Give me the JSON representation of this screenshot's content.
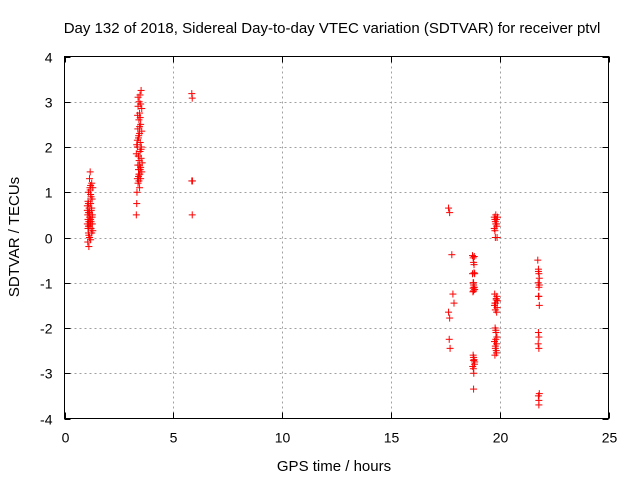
{
  "chart_data": {
    "type": "scatter",
    "title": "Day 132 of 2018, Sidereal Day-to-day VTEC variation (SDTVAR) for receiver ptvl",
    "xlabel": "GPS time / hours",
    "ylabel": "SDTVAR / TECUs",
    "xlim": [
      0,
      25
    ],
    "ylim": [
      -4,
      4
    ],
    "xticks": [
      0,
      5,
      10,
      15,
      20,
      25
    ],
    "yticks": [
      -4,
      -3,
      -2,
      -1,
      0,
      1,
      2,
      3,
      4
    ],
    "xtick_labels": [
      "0",
      "5",
      "10",
      "15",
      "20",
      "25"
    ],
    "ytick_labels": [
      "-4",
      "-3",
      "-2",
      "-1",
      "0",
      "1",
      "2",
      "3",
      "4"
    ],
    "grid": true,
    "marker": "+",
    "color": "#ff0000",
    "series": [
      {
        "name": "SDTVAR",
        "x": [
          1.05,
          1.05,
          1.05,
          1.07,
          1.07,
          1.08,
          1.08,
          1.1,
          1.1,
          1.1,
          1.12,
          1.12,
          1.13,
          1.13,
          1.15,
          1.15,
          1.15,
          1.17,
          1.17,
          1.18,
          1.18,
          1.2,
          1.2,
          1.2,
          1.22,
          1.22,
          1.23,
          1.25,
          1.25,
          1.27,
          1.27,
          1.28,
          1.3,
          1.3,
          1.1,
          1.15,
          1.2,
          1.25,
          1.12,
          1.18,
          1.22,
          1.08,
          1.28,
          1.1,
          1.2,
          3.3,
          3.32,
          3.33,
          3.35,
          3.35,
          3.37,
          3.37,
          3.38,
          3.38,
          3.4,
          3.4,
          3.4,
          3.42,
          3.42,
          3.43,
          3.43,
          3.45,
          3.45,
          3.45,
          3.47,
          3.47,
          3.48,
          3.48,
          3.5,
          3.5,
          3.5,
          3.52,
          3.52,
          3.53,
          3.55,
          3.55,
          3.57,
          3.3,
          3.35,
          3.4,
          3.45,
          3.5,
          3.55,
          3.38,
          3.42,
          3.48,
          3.52,
          3.32,
          3.44,
          3.36,
          3.46,
          3.41,
          3.39,
          5.85,
          5.87,
          5.85,
          5.88,
          5.87,
          17.65,
          17.7,
          17.8,
          17.85,
          17.9,
          17.65,
          17.7,
          17.68,
          17.72,
          18.75,
          18.78,
          18.8,
          18.82,
          18.85,
          18.75,
          18.78,
          18.8,
          18.82,
          18.85,
          18.77,
          18.8,
          18.83,
          18.78,
          18.8,
          18.82,
          18.85,
          18.76,
          18.79,
          18.81,
          18.84,
          18.8,
          18.82,
          18.78,
          18.8,
          18.83,
          18.8,
          19.75,
          19.78,
          19.8,
          19.82,
          19.85,
          19.87,
          19.9,
          19.75,
          19.78,
          19.8,
          19.82,
          19.85,
          19.87,
          19.9,
          19.76,
          19.8,
          19.84,
          19.88,
          19.77,
          19.81,
          19.86,
          19.79,
          19.83,
          19.87,
          19.76,
          19.8,
          19.84,
          19.78,
          19.82,
          19.86,
          19.8,
          19.85,
          19.78,
          19.82,
          19.88,
          19.84,
          21.75,
          21.78,
          21.8,
          21.82,
          21.77,
          21.8,
          21.78,
          21.8,
          21.82,
          21.78,
          21.8,
          21.77,
          21.8,
          21.82,
          21.78,
          21.8,
          21.8,
          21.78,
          21.82
        ],
        "y": [
          0.6,
          0.3,
          0.7,
          0.5,
          -0.1,
          0.4,
          0.2,
          1.0,
          0.55,
          0.1,
          0.35,
          -0.2,
          0.65,
          0.25,
          1.3,
          0.45,
          0.0,
          1.1,
          0.5,
          1.45,
          0.3,
          1.15,
          0.75,
          -0.05,
          0.9,
          0.2,
          0.6,
          1.2,
          0.1,
          0.45,
          0.85,
          0.3,
          1.1,
          0.15,
          0.75,
          0.55,
          0.4,
          0.65,
          0.05,
          1.05,
          0.35,
          0.8,
          0.5,
          0.25,
          0.95,
          0.5,
          0.75,
          1.0,
          1.3,
          2.0,
          1.6,
          2.4,
          1.2,
          2.9,
          1.5,
          1.8,
          2.2,
          2.6,
          1.4,
          3.0,
          1.7,
          1.1,
          2.3,
          2.75,
          1.9,
          3.15,
          1.5,
          2.1,
          2.95,
          1.3,
          2.5,
          1.75,
          3.25,
          2.0,
          1.45,
          2.85,
          1.65,
          1.85,
          2.15,
          1.35,
          2.45,
          1.55,
          2.35,
          3.1,
          1.25,
          2.65,
          1.95,
          2.05,
          1.6,
          2.7,
          1.4,
          2.25,
          1.8,
          3.18,
          3.08,
          1.25,
          1.25,
          0.5,
          0.65,
          0.55,
          -0.38,
          -1.25,
          -1.45,
          -1.65,
          -1.78,
          -2.25,
          -2.45,
          -0.4,
          -0.45,
          -0.55,
          -0.6,
          -0.8,
          -0.8,
          -1.0,
          -1.05,
          -1.1,
          -1.15,
          -1.2,
          -1.0,
          -1.1,
          -2.6,
          -2.65,
          -2.7,
          -2.75,
          -2.85,
          -2.9,
          -3.0,
          -2.8,
          -3.35,
          -0.78,
          -1.12,
          -2.72,
          -0.42,
          -1.18,
          0.45,
          0.4,
          0.35,
          0.5,
          0.3,
          0.25,
          0.45,
          0.2,
          0.15,
          0.0,
          0.3,
          0.4,
          -1.3,
          -1.4,
          -1.5,
          -1.6,
          -1.35,
          -1.55,
          -1.25,
          -1.45,
          -1.65,
          -2.0,
          -2.1,
          -2.2,
          -2.3,
          -2.4,
          -2.5,
          -2.6,
          -2.05,
          -2.35,
          -2.45,
          -2.55,
          -1.45,
          -2.25,
          -0.0,
          -1.38,
          -0.5,
          -0.7,
          -0.8,
          -0.9,
          -1.0,
          -1.1,
          -1.3,
          -1.3,
          -1.5,
          -2.1,
          -2.2,
          -2.35,
          -2.45,
          -3.45,
          -3.5,
          -3.6,
          -3.7,
          -0.75,
          -1.05
        ]
      }
    ]
  }
}
